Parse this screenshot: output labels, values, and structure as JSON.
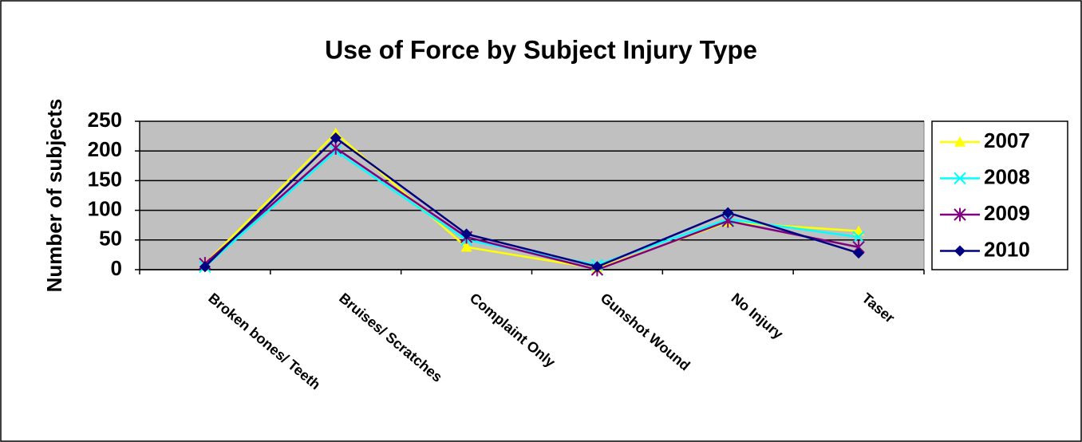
{
  "chart_data": {
    "type": "line",
    "title": "Use of Force by Subject Injury Type",
    "y_label": "Number of subjects",
    "categories": [
      "Broken bones/ Teeth",
      "Bruises/ Scratches",
      "Complaint Only",
      "Gunshot Wound",
      "No Injury",
      "Taser"
    ],
    "series": [
      {
        "name": "2007",
        "color": "#ffff00",
        "marker": "triangle",
        "values": [
          10,
          230,
          38,
          2,
          80,
          65
        ]
      },
      {
        "name": "2008",
        "color": "#00ffff",
        "marker": "x",
        "values": [
          5,
          200,
          50,
          8,
          85,
          55
        ]
      },
      {
        "name": "2009",
        "color": "#800080",
        "marker": "star",
        "values": [
          10,
          205,
          55,
          0,
          82,
          38
        ]
      },
      {
        "name": "2010",
        "color": "#000080",
        "marker": "diamond",
        "values": [
          5,
          222,
          60,
          5,
          96,
          28
        ]
      }
    ],
    "ylim": [
      0,
      250
    ],
    "yticks": [
      0,
      50,
      100,
      150,
      200,
      250
    ],
    "grid": true,
    "plot_background": "#c0c0c0",
    "legend": "right"
  }
}
